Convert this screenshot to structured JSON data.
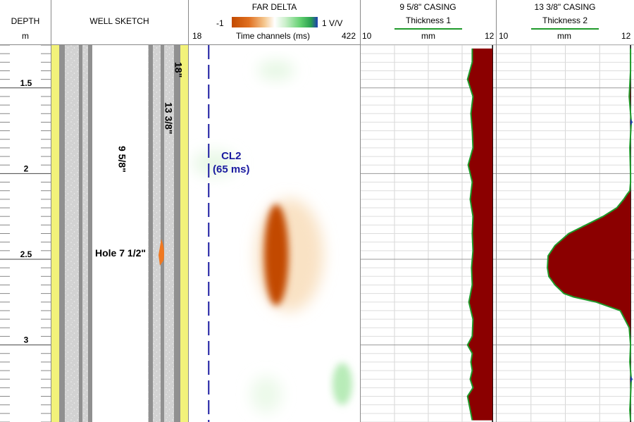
{
  "header": {
    "depth_title": "DEPTH",
    "depth_unit": "m",
    "sketch_title": "WELL SKETCH",
    "delta_title": "FAR DELTA",
    "casing1_title": "9 5/8\" CASING",
    "casing2_title": "13 3/8\" CASING"
  },
  "delta_scale": {
    "min_label": "-1",
    "max_label": "1 V/V",
    "axis_label": "Time channels (ms)",
    "axis_min": "18",
    "axis_max": "422"
  },
  "thickness1": {
    "name": "Thickness 1",
    "unit": "mm",
    "min": "10",
    "max": "12"
  },
  "thickness2": {
    "name": "Thickness 2",
    "unit": "mm",
    "min": "10",
    "max": "12"
  },
  "sketch_labels": {
    "casing_18": "18\"",
    "casing_13": "13 3/8\"",
    "casing_9": "9 5/8\"",
    "hole": "Hole 7 1/2\""
  },
  "annotation": {
    "line1": "CL2",
    "line2": "(65 ms)"
  },
  "colors": {
    "negative": "#c24a00",
    "positive": "#4ecb57",
    "positive_high": "#1f3fb0",
    "cursor": "#1a1aa0",
    "thickness_fill": "#8b0000",
    "thickness_curve": "#1f9a2a",
    "hole_anomaly": "#f07820",
    "cement": "#f2f27a"
  },
  "chart_data": [
    {
      "type": "line",
      "title": "DEPTH",
      "ylabel": "m",
      "ylim": [
        1.25,
        3.45
      ],
      "major_ticks": [
        1.5,
        2,
        2.5,
        3
      ],
      "tick_labels": [
        "1.5",
        "2",
        "2.5",
        "3"
      ]
    },
    {
      "type": "heatmap",
      "title": "FAR DELTA",
      "xlabel": "Time channels (ms)",
      "xlim": [
        18,
        422
      ],
      "ylim": [
        1.25,
        3.45
      ],
      "color_range": [
        -1,
        1
      ],
      "color_unit": "V/V",
      "cursor_ms": 65,
      "cursor_label": "CL2",
      "anomaly": {
        "value": -1,
        "depth_top": 2.18,
        "depth_bottom": 2.77,
        "ms_start": 137,
        "ms_end": 312
      }
    },
    {
      "type": "line",
      "title": "9 5/8\" CASING",
      "series": [
        {
          "name": "Thickness 1",
          "x": [
            11.65,
            11.65,
            11.58,
            11.66,
            11.63,
            11.65,
            11.66,
            11.59,
            11.65,
            11.62,
            11.66,
            11.65,
            11.66,
            11.64,
            11.65,
            11.6,
            11.66,
            11.65,
            11.58,
            11.65,
            11.63,
            11.65,
            11.62,
            11.66,
            11.58,
            11.65
          ],
          "y": [
            1.27,
            1.35,
            1.45,
            1.55,
            1.65,
            1.75,
            1.85,
            1.95,
            2.05,
            2.15,
            2.25,
            2.35,
            2.45,
            2.55,
            2.65,
            2.75,
            2.85,
            2.95,
            3.0,
            3.05,
            3.1,
            3.15,
            3.2,
            3.25,
            3.3,
            3.44
          ]
        }
      ],
      "xlabel": "mm",
      "xlim": [
        10,
        12
      ],
      "ylim": [
        1.25,
        3.45
      ]
    },
    {
      "type": "area",
      "title": "13 3/8\" CASING",
      "series": [
        {
          "name": "Thickness 2",
          "x": [
            11.95,
            11.95,
            11.93,
            11.96,
            11.94,
            11.95,
            11.95,
            11.94,
            11.9,
            11.85,
            11.75,
            11.55,
            11.3,
            11.05,
            10.85,
            10.75,
            10.74,
            10.76,
            10.85,
            10.98,
            11.12,
            11.45,
            11.8,
            11.93,
            11.95,
            11.94,
            11.96,
            11.95,
            11.94,
            11.95
          ],
          "y": [
            1.27,
            1.4,
            1.55,
            1.7,
            1.85,
            2.0,
            2.05,
            2.1,
            2.12,
            2.15,
            2.2,
            2.25,
            2.3,
            2.35,
            2.42,
            2.48,
            2.55,
            2.6,
            2.65,
            2.7,
            2.72,
            2.75,
            2.8,
            2.9,
            3.0,
            3.1,
            3.2,
            3.3,
            3.38,
            3.44
          ]
        }
      ],
      "xlabel": "mm",
      "xlim": [
        10,
        12
      ],
      "ylim": [
        1.25,
        3.45
      ]
    }
  ]
}
